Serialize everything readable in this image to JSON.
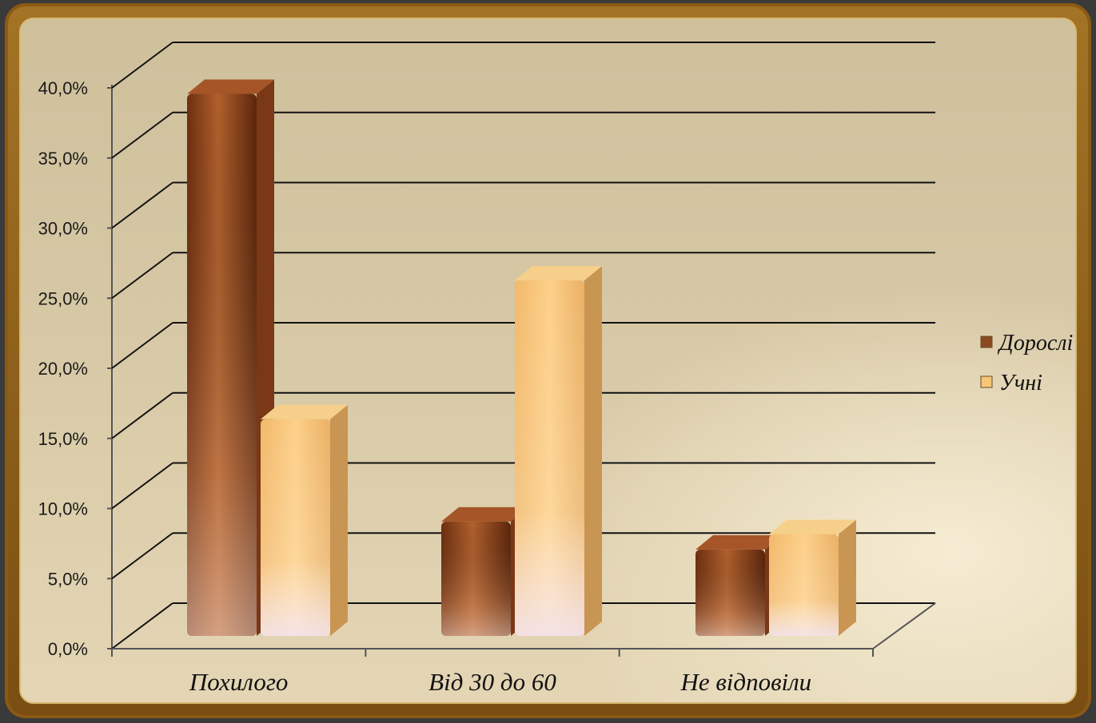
{
  "chart_data": {
    "type": "bar",
    "categories": [
      "Похилого",
      "Від 30 до 60",
      "Не відповіли"
    ],
    "series": [
      {
        "name": "Дорослі",
        "values": [
          39.0,
          8.5,
          6.5
        ],
        "color": "#8b4a1e"
      },
      {
        "name": "Учні",
        "values": [
          15.8,
          25.7,
          7.6
        ],
        "color": "#f6c777"
      }
    ],
    "yticks": [
      "0,0%",
      "5,0%",
      "10,0%",
      "15,0%",
      "20,0%",
      "25,0%",
      "30,0%",
      "35,0%",
      "40,0%"
    ],
    "ylim": [
      0,
      40
    ],
    "title": "",
    "xlabel": "",
    "ylabel": "",
    "grid": true,
    "legend": "right"
  }
}
